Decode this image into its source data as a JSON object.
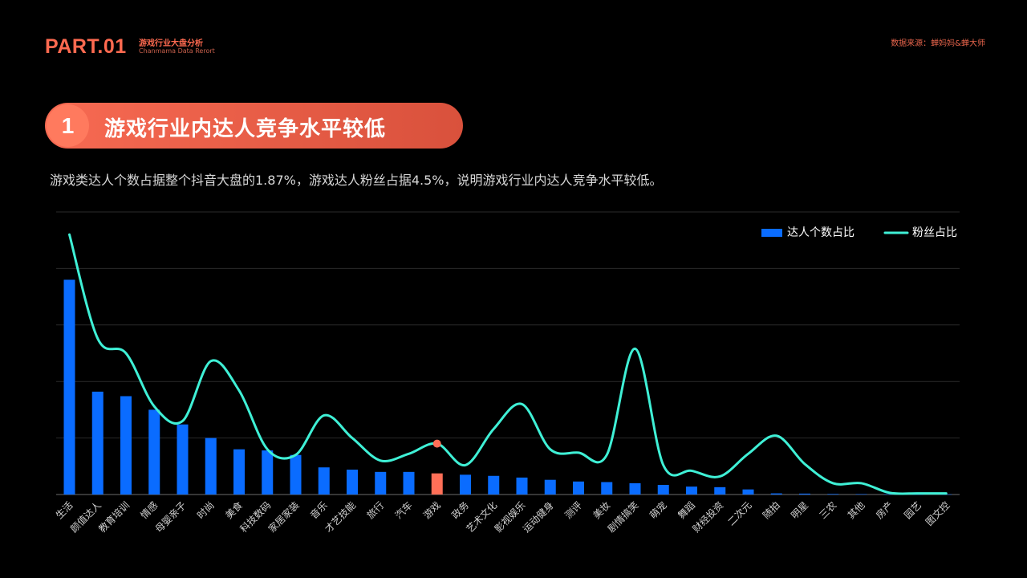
{
  "header": {
    "part_label": "PART.01",
    "part_subtitle_cn": "游戏行业大盘分析",
    "part_subtitle_en": "Chanmama Data Rerort",
    "source": "数据来源：蝉妈妈&蝉大师"
  },
  "section": {
    "number": "1",
    "title": "游戏行业内达人竞争水平较低",
    "description": "游戏类达人个数占据整个抖音大盘的1.87%，游戏达人粉丝占据4.5%，说明游戏行业内达人竞争水平较低。"
  },
  "colors": {
    "accent": "#ff6a50",
    "bar": "#0a6cff",
    "bar_highlight": "#ff6f57",
    "line": "#3ff0d6",
    "grid": "#2a2a2a"
  },
  "chart_data": {
    "type": "bar",
    "categories": [
      "生活",
      "颜值达人",
      "教育培训",
      "情感",
      "母婴亲子",
      "时尚",
      "美食",
      "科技数码",
      "家居家装",
      "音乐",
      "才艺技能",
      "旅行",
      "汽车",
      "游戏",
      "政务",
      "艺术文化",
      "影视娱乐",
      "运动健身",
      "测评",
      "美妆",
      "剧情搞笑",
      "萌宠",
      "舞蹈",
      "财经投资",
      "二次元",
      "随拍",
      "明星",
      "三农",
      "其他",
      "房产",
      "园艺",
      "图文控"
    ],
    "series": [
      {
        "name": "达人个数占比",
        "type": "bar",
        "values": [
          19.0,
          9.1,
          8.7,
          7.5,
          6.2,
          5.0,
          4.0,
          3.9,
          3.5,
          2.4,
          2.2,
          2.0,
          2.0,
          1.87,
          1.75,
          1.65,
          1.5,
          1.3,
          1.15,
          1.1,
          1.0,
          0.85,
          0.7,
          0.65,
          0.45,
          0.1,
          0.08,
          0.05,
          0.04,
          0.03,
          0.02,
          0.02
        ],
        "highlight_category": "游戏"
      },
      {
        "name": "粉丝占比",
        "type": "line",
        "values": [
          23.0,
          13.8,
          12.5,
          7.8,
          6.5,
          11.8,
          9.2,
          4.0,
          3.5,
          7.0,
          5.0,
          3.0,
          3.6,
          4.5,
          2.6,
          5.8,
          8.0,
          4.0,
          3.7,
          3.5,
          12.9,
          2.6,
          2.1,
          1.6,
          3.6,
          5.2,
          2.7,
          1.0,
          1.0,
          0.15,
          0.1,
          0.1
        ],
        "highlight_category": "游戏"
      }
    ],
    "ylim": [
      0,
      25
    ],
    "grid": true,
    "legend": "top-right",
    "xlabel": "",
    "ylabel": ""
  }
}
